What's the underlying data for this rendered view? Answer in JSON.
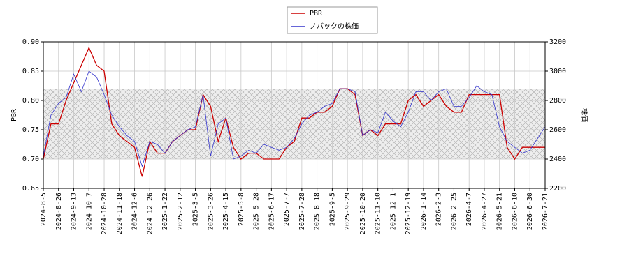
{
  "chart_data": {
    "type": "line",
    "categories": [
      "2024-8-5",
      null,
      "2024-8-26",
      null,
      "2024-9-13",
      null,
      "2024-10-7",
      null,
      "2024-10-28",
      null,
      "2024-11-18",
      null,
      "2024-12-6",
      null,
      "2024-12-26",
      null,
      "2025-1-22",
      null,
      "2025-2-12",
      null,
      "2025-3-5",
      null,
      "2025-3-26",
      null,
      "2025-4-15",
      null,
      "2025-5-8",
      null,
      "2025-5-28",
      null,
      "2025-6-17",
      null,
      "2025-7-7",
      null,
      "2025-7-28",
      null,
      "2025-8-18",
      null,
      "2025-9-5",
      null,
      "2025-9-29",
      null,
      "2025-10-20",
      null,
      "2025-11-10",
      null,
      "2025-12-1",
      null,
      "2025-12-19",
      null,
      "2026-1-14",
      null,
      "2026-2-3",
      null,
      "2026-2-25",
      null,
      "2026-4-7",
      null,
      "2026-4-27",
      null,
      "2026-5-21",
      null,
      "2026-6-10",
      null,
      "2026-6-30",
      null,
      "2026-7-21"
    ],
    "series": [
      {
        "name": "PBR",
        "color": "#cc0000",
        "axis": "y",
        "values": [
          0.7,
          0.76,
          0.76,
          0.8,
          0.83,
          0.86,
          0.89,
          0.86,
          0.85,
          0.76,
          0.74,
          0.73,
          0.72,
          0.67,
          0.73,
          0.71,
          0.71,
          0.73,
          0.74,
          0.75,
          0.75,
          0.81,
          0.79,
          0.73,
          0.77,
          0.72,
          0.7,
          0.71,
          0.71,
          0.7,
          0.7,
          0.7,
          0.72,
          0.73,
          0.77,
          0.77,
          0.78,
          0.78,
          0.79,
          0.82,
          0.82,
          0.81,
          0.74,
          0.75,
          0.74,
          0.76,
          0.76,
          0.76,
          0.8,
          0.81,
          0.79,
          0.8,
          0.81,
          0.79,
          0.78,
          0.78,
          0.81,
          0.81,
          0.81,
          0.81,
          0.81,
          0.72,
          0.7,
          0.72,
          0.72,
          0.72,
          0.72
        ]
      },
      {
        "name": "ノバックの株価",
        "color": "#3333cc",
        "axis": "y2",
        "values": [
          2420,
          2700,
          2780,
          2820,
          2980,
          2860,
          3000,
          2960,
          2840,
          2700,
          2620,
          2560,
          2520,
          2350,
          2520,
          2500,
          2440,
          2520,
          2560,
          2600,
          2620,
          2840,
          2420,
          2640,
          2680,
          2400,
          2420,
          2460,
          2440,
          2500,
          2480,
          2460,
          2480,
          2540,
          2640,
          2700,
          2720,
          2760,
          2780,
          2880,
          2880,
          2860,
          2560,
          2600,
          2580,
          2720,
          2660,
          2620,
          2720,
          2860,
          2860,
          2800,
          2860,
          2880,
          2760,
          2760,
          2820,
          2900,
          2860,
          2840,
          2620,
          2520,
          2480,
          2440,
          2460,
          2540,
          2620
        ]
      }
    ],
    "ylabel": "PBR",
    "y2label": "株価",
    "ylim": [
      0.65,
      0.9
    ],
    "yticks": [
      {
        "value": 0.65,
        "label": "0.65"
      },
      {
        "value": 0.7,
        "label": "0.70"
      },
      {
        "value": 0.75,
        "label": "0.75"
      },
      {
        "value": 0.8,
        "label": "0.80"
      },
      {
        "value": 0.85,
        "label": "0.85"
      },
      {
        "value": 0.9,
        "label": "0.90"
      }
    ],
    "y2lim": [
      2200,
      3200
    ],
    "y2ticks": [
      2200,
      2400,
      2600,
      2800,
      3000,
      3200
    ],
    "shaded_range": [
      0.7,
      0.82
    ],
    "grid": true,
    "legend": "top"
  }
}
